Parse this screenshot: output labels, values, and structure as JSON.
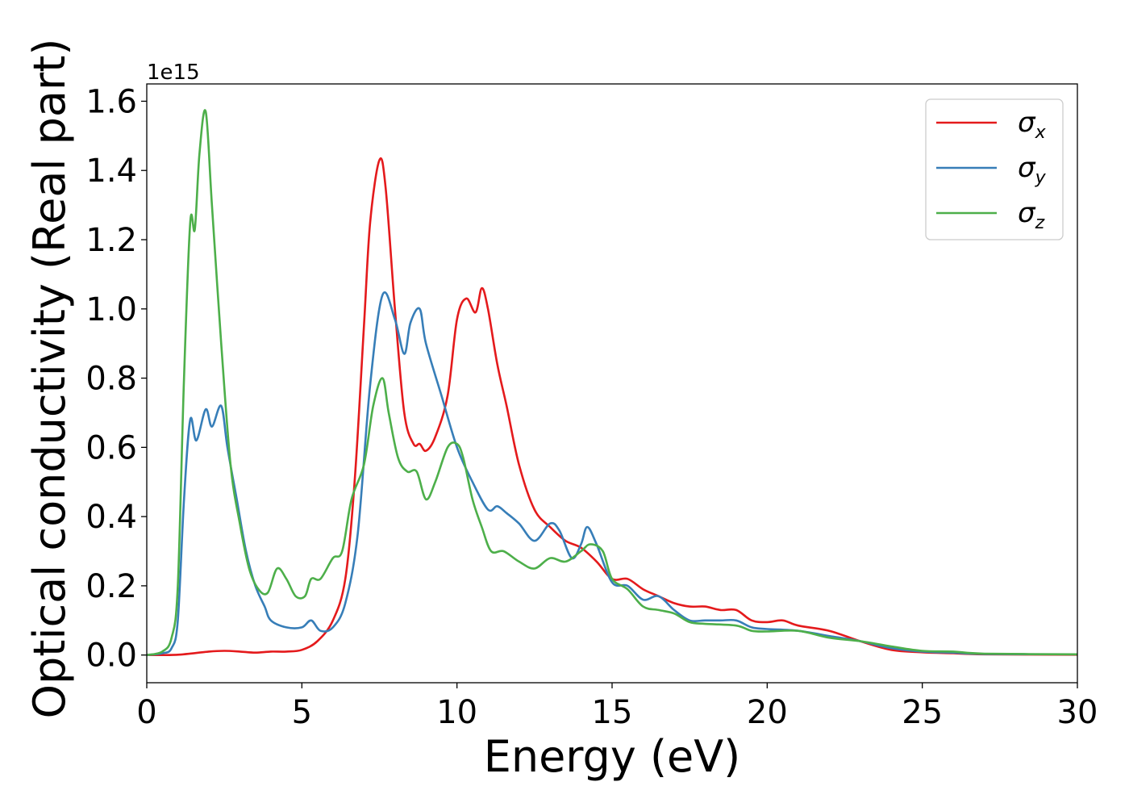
{
  "chart_data": {
    "type": "line",
    "title": "",
    "xlabel": "Energy (eV)",
    "ylabel": "Optical conductivity (Real part)",
    "y_offset_label": "1e15",
    "xlim": [
      0,
      30
    ],
    "ylim": [
      -0.08,
      1.65
    ],
    "x_ticks": [
      0,
      5,
      10,
      15,
      20,
      25,
      30
    ],
    "y_ticks": [
      0.0,
      0.2,
      0.4,
      0.6,
      0.8,
      1.0,
      1.2,
      1.4,
      1.6
    ],
    "x_tick_labels": [
      "0",
      "5",
      "10",
      "15",
      "20",
      "25",
      "30"
    ],
    "y_tick_labels": [
      "0.0",
      "0.2",
      "0.4",
      "0.6",
      "0.8",
      "1.0",
      "1.2",
      "1.4",
      "1.6"
    ],
    "grid": false,
    "legend_position": "top-right",
    "series": [
      {
        "name": "σx",
        "legend_symbol": "σ",
        "legend_sub": "x",
        "color": "#e41a1c",
        "points": [
          [
            0,
            0.0
          ],
          [
            1.0,
            0.001
          ],
          [
            2.0,
            0.01
          ],
          [
            2.5,
            0.012
          ],
          [
            3.0,
            0.01
          ],
          [
            3.5,
            0.007
          ],
          [
            4.0,
            0.01
          ],
          [
            4.5,
            0.01
          ],
          [
            5.0,
            0.015
          ],
          [
            5.5,
            0.04
          ],
          [
            6.0,
            0.1
          ],
          [
            6.4,
            0.22
          ],
          [
            6.7,
            0.5
          ],
          [
            7.0,
            0.95
          ],
          [
            7.2,
            1.25
          ],
          [
            7.5,
            1.43
          ],
          [
            7.7,
            1.35
          ],
          [
            8.0,
            1.0
          ],
          [
            8.3,
            0.7
          ],
          [
            8.6,
            0.61
          ],
          [
            8.8,
            0.61
          ],
          [
            9.0,
            0.59
          ],
          [
            9.3,
            0.63
          ],
          [
            9.7,
            0.75
          ],
          [
            10.0,
            0.97
          ],
          [
            10.3,
            1.03
          ],
          [
            10.6,
            0.99
          ],
          [
            10.8,
            1.06
          ],
          [
            11.0,
            1.0
          ],
          [
            11.3,
            0.84
          ],
          [
            11.6,
            0.72
          ],
          [
            12.0,
            0.55
          ],
          [
            12.5,
            0.42
          ],
          [
            13.0,
            0.37
          ],
          [
            13.5,
            0.33
          ],
          [
            14.0,
            0.31
          ],
          [
            14.5,
            0.27
          ],
          [
            15.0,
            0.22
          ],
          [
            15.5,
            0.22
          ],
          [
            16.0,
            0.19
          ],
          [
            16.5,
            0.17
          ],
          [
            17.0,
            0.15
          ],
          [
            17.5,
            0.14
          ],
          [
            18.0,
            0.14
          ],
          [
            18.5,
            0.13
          ],
          [
            19.0,
            0.13
          ],
          [
            19.5,
            0.1
          ],
          [
            20.0,
            0.095
          ],
          [
            20.5,
            0.1
          ],
          [
            21.0,
            0.085
          ],
          [
            22.0,
            0.07
          ],
          [
            23.0,
            0.04
          ],
          [
            24.0,
            0.015
          ],
          [
            25.0,
            0.008
          ],
          [
            26.0,
            0.005
          ],
          [
            27.0,
            0.002
          ],
          [
            30.0,
            0.001
          ]
        ]
      },
      {
        "name": "σy",
        "legend_symbol": "σ",
        "legend_sub": "y",
        "color": "#377eb8",
        "points": [
          [
            0,
            0.0
          ],
          [
            0.5,
            0.005
          ],
          [
            0.8,
            0.02
          ],
          [
            1.0,
            0.1
          ],
          [
            1.2,
            0.45
          ],
          [
            1.4,
            0.68
          ],
          [
            1.6,
            0.62
          ],
          [
            1.9,
            0.71
          ],
          [
            2.1,
            0.66
          ],
          [
            2.4,
            0.72
          ],
          [
            2.6,
            0.6
          ],
          [
            2.9,
            0.45
          ],
          [
            3.2,
            0.3
          ],
          [
            3.5,
            0.2
          ],
          [
            3.8,
            0.14
          ],
          [
            4.0,
            0.1
          ],
          [
            4.5,
            0.08
          ],
          [
            5.0,
            0.08
          ],
          [
            5.3,
            0.1
          ],
          [
            5.6,
            0.07
          ],
          [
            6.0,
            0.08
          ],
          [
            6.4,
            0.15
          ],
          [
            6.8,
            0.35
          ],
          [
            7.2,
            0.78
          ],
          [
            7.6,
            1.04
          ],
          [
            8.0,
            0.97
          ],
          [
            8.3,
            0.87
          ],
          [
            8.5,
            0.96
          ],
          [
            8.8,
            1.0
          ],
          [
            9.0,
            0.9
          ],
          [
            9.5,
            0.75
          ],
          [
            10.0,
            0.6
          ],
          [
            10.5,
            0.5
          ],
          [
            11.0,
            0.42
          ],
          [
            11.3,
            0.43
          ],
          [
            11.6,
            0.41
          ],
          [
            12.0,
            0.38
          ],
          [
            12.5,
            0.33
          ],
          [
            13.0,
            0.38
          ],
          [
            13.3,
            0.36
          ],
          [
            13.7,
            0.28
          ],
          [
            14.0,
            0.32
          ],
          [
            14.2,
            0.37
          ],
          [
            14.5,
            0.32
          ],
          [
            15.0,
            0.21
          ],
          [
            15.5,
            0.2
          ],
          [
            16.0,
            0.16
          ],
          [
            16.5,
            0.17
          ],
          [
            17.0,
            0.13
          ],
          [
            17.5,
            0.1
          ],
          [
            18.0,
            0.1
          ],
          [
            18.5,
            0.1
          ],
          [
            19.0,
            0.1
          ],
          [
            19.5,
            0.08
          ],
          [
            20.0,
            0.075
          ],
          [
            21.0,
            0.07
          ],
          [
            22.0,
            0.055
          ],
          [
            23.0,
            0.04
          ],
          [
            24.0,
            0.02
          ],
          [
            25.0,
            0.01
          ],
          [
            26.0,
            0.007
          ],
          [
            27.0,
            0.003
          ],
          [
            30.0,
            0.002
          ]
        ]
      },
      {
        "name": "σz",
        "legend_symbol": "σ",
        "legend_sub": "z",
        "color": "#4daf4a",
        "points": [
          [
            0,
            0.0
          ],
          [
            0.5,
            0.01
          ],
          [
            0.8,
            0.05
          ],
          [
            1.0,
            0.2
          ],
          [
            1.2,
            0.8
          ],
          [
            1.4,
            1.25
          ],
          [
            1.55,
            1.23
          ],
          [
            1.7,
            1.45
          ],
          [
            1.9,
            1.57
          ],
          [
            2.1,
            1.3
          ],
          [
            2.4,
            0.9
          ],
          [
            2.7,
            0.55
          ],
          [
            3.0,
            0.38
          ],
          [
            3.3,
            0.25
          ],
          [
            3.6,
            0.19
          ],
          [
            3.9,
            0.18
          ],
          [
            4.2,
            0.25
          ],
          [
            4.5,
            0.22
          ],
          [
            4.8,
            0.17
          ],
          [
            5.1,
            0.17
          ],
          [
            5.3,
            0.22
          ],
          [
            5.6,
            0.22
          ],
          [
            6.0,
            0.28
          ],
          [
            6.3,
            0.3
          ],
          [
            6.6,
            0.45
          ],
          [
            7.0,
            0.55
          ],
          [
            7.3,
            0.72
          ],
          [
            7.6,
            0.8
          ],
          [
            7.8,
            0.7
          ],
          [
            8.1,
            0.57
          ],
          [
            8.4,
            0.53
          ],
          [
            8.7,
            0.53
          ],
          [
            9.0,
            0.45
          ],
          [
            9.3,
            0.5
          ],
          [
            9.7,
            0.6
          ],
          [
            10.0,
            0.61
          ],
          [
            10.2,
            0.57
          ],
          [
            10.5,
            0.45
          ],
          [
            10.8,
            0.37
          ],
          [
            11.1,
            0.3
          ],
          [
            11.5,
            0.3
          ],
          [
            12.0,
            0.27
          ],
          [
            12.5,
            0.25
          ],
          [
            13.0,
            0.28
          ],
          [
            13.5,
            0.27
          ],
          [
            14.0,
            0.3
          ],
          [
            14.3,
            0.32
          ],
          [
            14.7,
            0.3
          ],
          [
            15.0,
            0.22
          ],
          [
            15.5,
            0.19
          ],
          [
            16.0,
            0.14
          ],
          [
            16.5,
            0.13
          ],
          [
            17.0,
            0.12
          ],
          [
            17.5,
            0.095
          ],
          [
            18.0,
            0.09
          ],
          [
            19.0,
            0.085
          ],
          [
            19.5,
            0.07
          ],
          [
            20.0,
            0.068
          ],
          [
            21.0,
            0.07
          ],
          [
            22.0,
            0.05
          ],
          [
            23.0,
            0.04
          ],
          [
            24.0,
            0.025
          ],
          [
            25.0,
            0.012
          ],
          [
            26.0,
            0.01
          ],
          [
            27.0,
            0.004
          ],
          [
            30.0,
            0.002
          ]
        ]
      }
    ]
  }
}
